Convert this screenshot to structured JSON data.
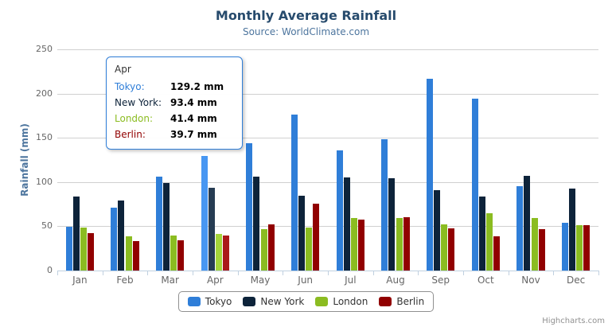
{
  "credits": "Highcharts.com",
  "export_menu": {
    "icon": "hamburger-icon"
  },
  "tooltip": {
    "header": "Apr",
    "border_color": "#2f7ed8",
    "rows": [
      {
        "label": "Tokyo:",
        "value": "129.2 mm",
        "color": "#2f7ed8"
      },
      {
        "label": "New York:",
        "value": "93.4 mm",
        "color": "#0d233a"
      },
      {
        "label": "London:",
        "value": "41.4 mm",
        "color": "#8bbc21"
      },
      {
        "label": "Berlin:",
        "value": "39.7 mm",
        "color": "#910000"
      }
    ]
  },
  "chart_data": {
    "type": "bar",
    "title": "Monthly Average Rainfall",
    "subtitle": "Source: WorldClimate.com",
    "ylabel": "Rainfall (mm)",
    "xlabel": "",
    "ylim": [
      0,
      250
    ],
    "yticks": [
      0,
      50,
      100,
      150,
      200,
      250
    ],
    "grid": true,
    "legend_position": "bottom",
    "categories": [
      "Jan",
      "Feb",
      "Mar",
      "Apr",
      "May",
      "Jun",
      "Jul",
      "Aug",
      "Sep",
      "Oct",
      "Nov",
      "Dec"
    ],
    "hover_category": "Apr",
    "series": [
      {
        "name": "Tokyo",
        "color": "#2f7ed8",
        "hover_color": "#4897f2",
        "values": [
          49.9,
          71.5,
          106.4,
          129.2,
          144.0,
          176.0,
          135.6,
          148.5,
          216.4,
          194.1,
          95.6,
          54.4
        ]
      },
      {
        "name": "New York",
        "color": "#0d233a",
        "hover_color": "#263c53",
        "values": [
          83.6,
          78.8,
          98.5,
          93.4,
          106.0,
          84.5,
          105.0,
          104.3,
          91.2,
          83.5,
          106.6,
          92.3
        ]
      },
      {
        "name": "London",
        "color": "#8bbc21",
        "hover_color": "#a4d53a",
        "values": [
          48.9,
          38.8,
          39.3,
          41.4,
          47.0,
          48.3,
          59.0,
          59.6,
          52.4,
          65.2,
          59.3,
          51.2
        ]
      },
      {
        "name": "Berlin",
        "color": "#910000",
        "hover_color": "#aa1919",
        "values": [
          42.4,
          33.2,
          34.5,
          39.7,
          52.6,
          75.5,
          57.4,
          60.4,
          47.6,
          39.1,
          46.8,
          51.1
        ]
      }
    ]
  }
}
